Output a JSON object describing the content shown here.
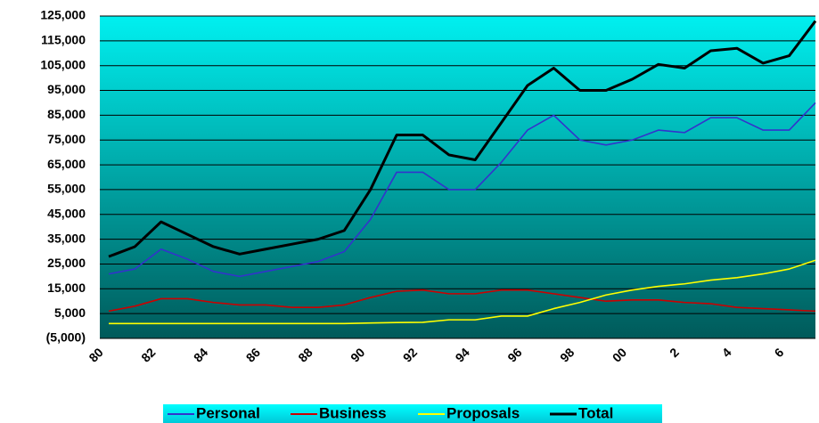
{
  "chart_data": {
    "type": "line",
    "categories": [
      "80",
      null,
      "82",
      null,
      "84",
      null,
      "86",
      null,
      "88",
      null,
      "90",
      null,
      "92",
      null,
      "94",
      null,
      "96",
      null,
      "98",
      null,
      "00",
      null,
      "2",
      null,
      "4",
      null,
      "6",
      null
    ],
    "series": [
      {
        "name": "Personal",
        "color": "#3333cc",
        "values": [
          21000,
          23000,
          31000,
          27000,
          22000,
          20000,
          22000,
          24000,
          26000,
          30000,
          43000,
          62000,
          62000,
          55000,
          55000,
          66000,
          79000,
          85000,
          75000,
          73000,
          75000,
          79000,
          78000,
          84000,
          84000,
          79000,
          79000,
          90000
        ]
      },
      {
        "name": "Business",
        "color": "#cc0000",
        "values": [
          6000,
          8000,
          11000,
          11000,
          9500,
          8500,
          8500,
          7500,
          7500,
          8500,
          11500,
          14000,
          14500,
          13000,
          13000,
          14500,
          14500,
          13000,
          11500,
          10000,
          10500,
          10500,
          9500,
          9000,
          7500,
          7000,
          6500,
          6000
        ]
      },
      {
        "name": "Proposals",
        "color": "#ffff00",
        "values": [
          1000,
          1000,
          1000,
          1000,
          1000,
          1000,
          1000,
          1000,
          1000,
          1000,
          1200,
          1400,
          1500,
          2500,
          2500,
          4000,
          4000,
          7000,
          9500,
          12500,
          14500,
          16000,
          17000,
          18500,
          19500,
          21000,
          23000,
          26500
        ]
      },
      {
        "name": "Total",
        "color": "#000000",
        "values": [
          28000,
          32000,
          42000,
          37000,
          32000,
          29000,
          31000,
          33000,
          35000,
          38500,
          55000,
          77000,
          77000,
          69000,
          67000,
          82000,
          97000,
          104000,
          95000,
          95000,
          99500,
          105500,
          104000,
          111000,
          112000,
          106000,
          109000,
          123000
        ]
      }
    ],
    "ylim": [
      -5000,
      125000
    ],
    "yticks": [
      {
        "value": -5000,
        "label": "(5,000)"
      },
      {
        "value": 5000,
        "label": "5,000"
      },
      {
        "value": 15000,
        "label": "15,000"
      },
      {
        "value": 25000,
        "label": "25,000"
      },
      {
        "value": 35000,
        "label": "35,000"
      },
      {
        "value": 45000,
        "label": "45,000"
      },
      {
        "value": 55000,
        "label": "55,000"
      },
      {
        "value": 65000,
        "label": "65,000"
      },
      {
        "value": 75000,
        "label": "75,000"
      },
      {
        "value": 85000,
        "label": "85,000"
      },
      {
        "value": 95000,
        "label": "95,000"
      },
      {
        "value": 105000,
        "label": "105,000"
      },
      {
        "value": 115000,
        "label": "115,000"
      },
      {
        "value": 125000,
        "label": "125,000"
      }
    ],
    "grid": true,
    "legend": "bottom"
  }
}
